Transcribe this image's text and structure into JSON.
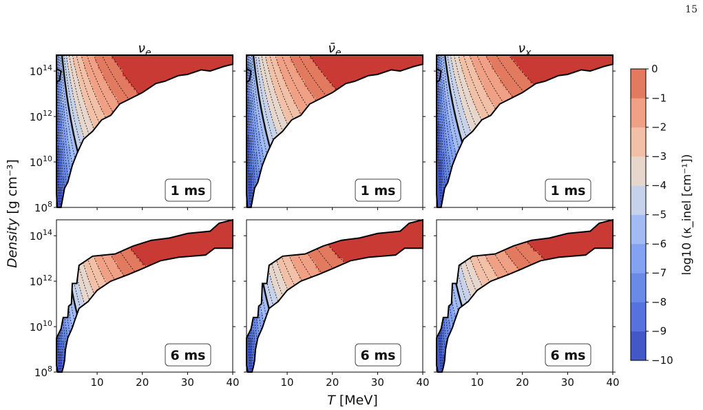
{
  "page_number": "15",
  "chart_data": {
    "type": "heatmap",
    "xlabel_var": "T",
    "xlabel_unit": "[MeV]",
    "ylabel_var": "Density",
    "ylabel_unit": "[g cm⁻³]",
    "xlim": [
      1,
      40
    ],
    "ylim_log10": [
      8,
      14.7
    ],
    "x_ticks": [
      10,
      20,
      30,
      40
    ],
    "y_ticks": [
      "10^8",
      "10^10",
      "10^12",
      "10^14"
    ],
    "columns": [
      "ν_e",
      "ν̄_e",
      "ν_x"
    ],
    "rows": [
      "1 ms",
      "6 ms"
    ],
    "colorbar": {
      "label": "log10 (κ_inel [cm⁻¹])",
      "range": [
        -10,
        0
      ],
      "ticks": [
        "0",
        "−1",
        "−2",
        "−3",
        "−4",
        "−5",
        "−6",
        "−7",
        "−8",
        "−9",
        "−10"
      ],
      "colormap": "coolwarm",
      "highlight_contour": -5
    },
    "panels": [
      {
        "row": "1 ms",
        "col": "ν_e",
        "shape": "A",
        "tilt": 0,
        "bold_level": -5
      },
      {
        "row": "1 ms",
        "col": "ν̄_e",
        "shape": "A",
        "tilt": 1,
        "bold_level": -5
      },
      {
        "row": "1 ms",
        "col": "ν_x",
        "shape": "A",
        "tilt": 2,
        "bold_level": -5
      },
      {
        "row": "6 ms",
        "col": "ν_e",
        "shape": "B",
        "tilt": 0,
        "bold_level": -5
      },
      {
        "row": "6 ms",
        "col": "ν̄_e",
        "shape": "B",
        "tilt": 1,
        "bold_level": -5
      },
      {
        "row": "6 ms",
        "col": "ν_x",
        "shape": "B",
        "tilt": 2,
        "bold_level": -5
      }
    ],
    "colors": {
      "c-10": "#4358c8",
      "c-9": "#5672dc",
      "c-8": "#6a8ae8",
      "c-7": "#84a2f2",
      "c-6": "#a2bbf4",
      "c-5": "#c6d2ea",
      "c-4": "#e6d6cc",
      "c-3": "#f2c0a6",
      "c-2": "#f0a084",
      "c-1": "#e27a60",
      "c0": "#c93a34"
    }
  }
}
